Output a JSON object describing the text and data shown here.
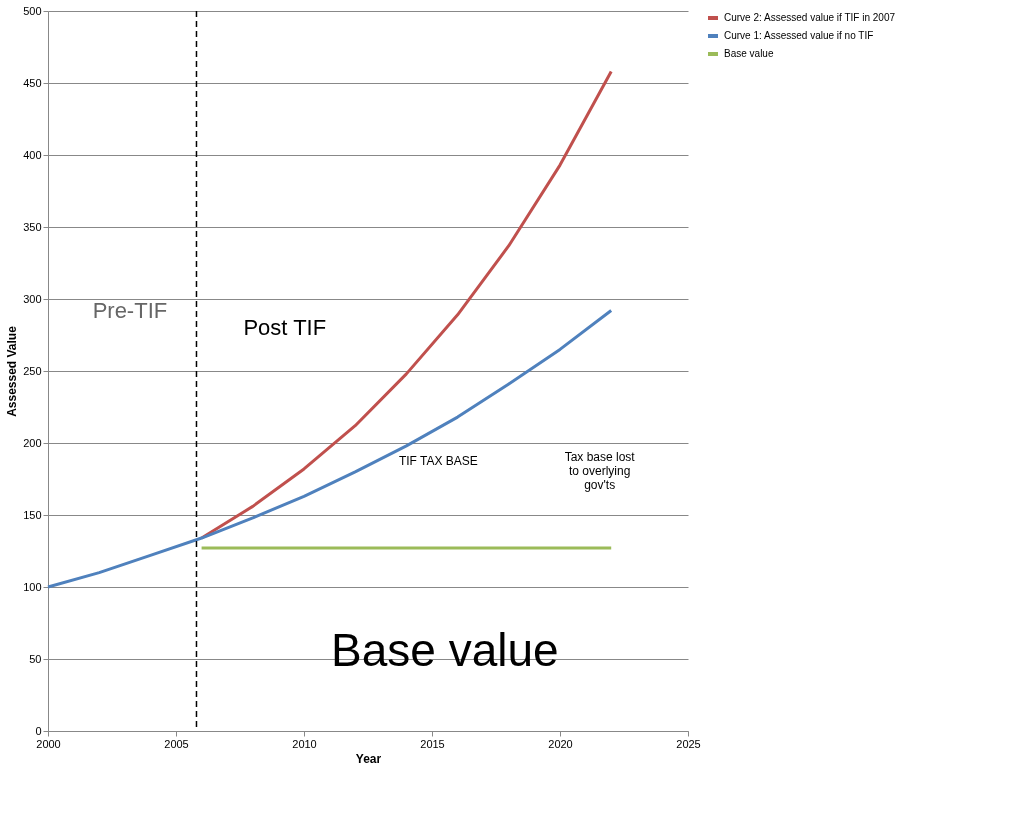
{
  "chart_data": {
    "type": "line",
    "xlabel": "Year",
    "ylabel": "Assessed Value",
    "xlim": [
      2000,
      2025
    ],
    "xticks": [
      2000,
      2005,
      2010,
      2015,
      2020,
      2025
    ],
    "ylim": [
      0,
      500
    ],
    "yticks": [
      0,
      50,
      100,
      150,
      200,
      250,
      300,
      350,
      400,
      450,
      500
    ],
    "grid": "y",
    "legend": "right",
    "line_style": "solid",
    "marker": "none",
    "series": [
      {
        "name": "Curve 2:  Assessed value if  TIF in 2007",
        "color": "#c0504d",
        "x": [
          2006,
          2008,
          2010,
          2012,
          2014,
          2016,
          2018,
          2020,
          2022
        ],
        "values": [
          134,
          156,
          182,
          212,
          248,
          289,
          337,
          393,
          458
        ]
      },
      {
        "name": "Curve 1:  Assessed value if no TIF",
        "color": "#4f81bd",
        "x": [
          2000,
          2002,
          2004,
          2006,
          2008,
          2010,
          2012,
          2014,
          2016,
          2018,
          2020,
          2022
        ],
        "values": [
          100,
          110,
          122,
          134,
          148,
          163,
          180,
          198,
          218,
          241,
          265,
          292
        ]
      },
      {
        "name": "Base value",
        "color": "#9bbb59",
        "x": [
          2006,
          2022
        ],
        "values": [
          127,
          127
        ]
      }
    ],
    "ref_lines": [
      {
        "axis": "x",
        "value": 2005.8,
        "color": "#000000",
        "line_style": "dashed"
      }
    ],
    "annotations": [
      "Pre-TIF",
      "Post TIF",
      "TIF TAX BASE",
      "Tax base  lost to overlying gov'ts",
      "Base value"
    ]
  }
}
